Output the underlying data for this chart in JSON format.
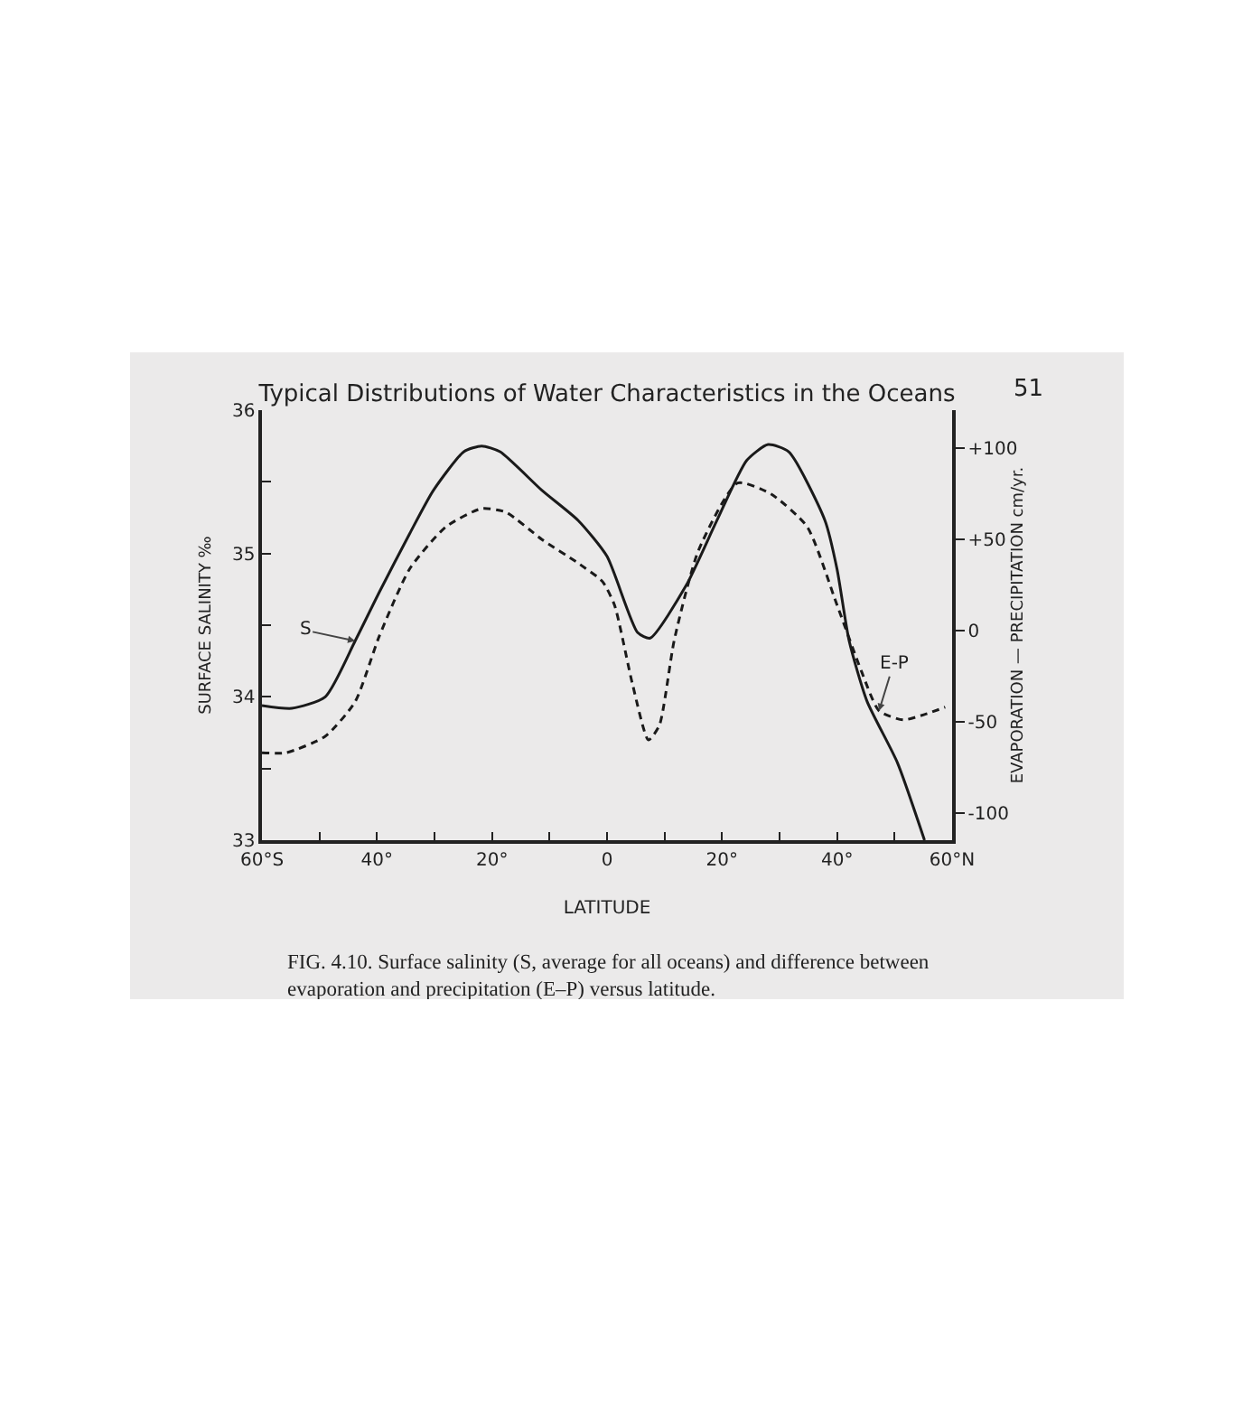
{
  "chart_data": {
    "type": "line",
    "title": "Typical Distributions of Water Characteristics in the Oceans",
    "xlabel": "LATITUDE",
    "ylabel": "SURFACE SALINITY ‰",
    "y2label": "EVAPORATION — PRECIPITATION cm/yr.",
    "annotations": [
      "51",
      "FIG. 4.10. Surface salinity (S, average for all oceans) and difference between evaporation and precipitation (E–P) versus latitude."
    ],
    "xlim": [
      -60,
      60
    ],
    "xticks": [
      {
        "value": -60,
        "label": "60°S"
      },
      {
        "value": -50,
        "label": null
      },
      {
        "value": -40,
        "label": "40°"
      },
      {
        "value": -30,
        "label": null
      },
      {
        "value": -20,
        "label": "20°"
      },
      {
        "value": -10,
        "label": null
      },
      0,
      {
        "value": 10,
        "label": null
      },
      {
        "value": 20,
        "label": "20°"
      },
      {
        "value": 30,
        "label": null
      },
      {
        "value": 40,
        "label": "40°"
      },
      {
        "value": 50,
        "label": null
      },
      {
        "value": 60,
        "label": "60°N"
      }
    ],
    "ylim": [
      33,
      36
    ],
    "yticks": [
      33,
      {
        "value": 33.5,
        "label": null
      },
      34,
      {
        "value": 34.5,
        "label": null
      },
      35,
      {
        "value": 35.5,
        "label": null
      },
      36
    ],
    "y2lim": [
      -115,
      121
    ],
    "y2ticks": [
      {
        "value": -100,
        "label": "-100"
      },
      {
        "value": -50,
        "label": "-50"
      },
      0,
      {
        "value": 50,
        "label": "+50"
      },
      {
        "value": 100,
        "label": "+100"
      }
    ],
    "series": [
      {
        "name": "S",
        "color": "#1a1a1a",
        "line_style": "solid",
        "x": [
          -60,
          -54.8,
          -49,
          -43.8,
          -39.6,
          -34.3,
          -30.2,
          -24.9,
          -21.8,
          -18.6,
          -11.3,
          -5,
          0,
          5.3,
          7.5,
          13.8,
          19.1,
          24.3,
          28,
          31.6,
          37.9,
          40,
          42.1,
          45.2,
          50.5,
          55.2
        ],
        "values": [
          33.94,
          33.92,
          34.0,
          34.39,
          34.73,
          35.14,
          35.44,
          35.71,
          35.75,
          35.71,
          35.44,
          35.23,
          34.98,
          34.45,
          34.41,
          34.78,
          35.23,
          35.65,
          35.76,
          35.71,
          35.23,
          34.89,
          34.39,
          33.97,
          33.54,
          33.0
        ]
      },
      {
        "name": "E-P",
        "axis": "y2",
        "color": "#1a1a1a",
        "line_style": "dashed",
        "x": [
          -60,
          -55.8,
          -49,
          -43.8,
          -39.6,
          -34.3,
          -28,
          -21.8,
          -17.6,
          -11.3,
          -5,
          -0.8,
          1.3,
          4.4,
          7.2,
          9.1,
          11.7,
          15.9,
          22.7,
          28.5,
          34.8,
          40,
          44.2,
          47.3,
          51.5,
          55.2,
          58.8
        ],
        "values": [
          -67,
          -67,
          -58,
          -39,
          -3,
          34,
          57,
          67,
          65,
          50,
          37,
          27,
          14,
          -29,
          -60,
          -52,
          -5,
          44,
          81,
          75,
          57,
          14,
          -22,
          -44,
          -49,
          -46,
          -42
        ]
      }
    ]
  }
}
